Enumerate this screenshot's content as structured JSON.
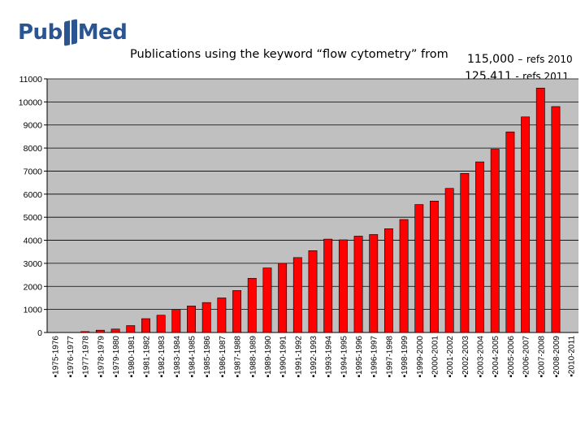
{
  "logo": {
    "left": "Pub",
    "right": "Med"
  },
  "title_line": "Publications using the keyword “flow cytometry” from",
  "refs": [
    {
      "count": "115,000",
      "sep": "–",
      "label": "refs 2010"
    },
    {
      "count": "125,411",
      "sep": "-",
      "label": "refs 2011"
    }
  ],
  "colors": {
    "plot_bg": "#c0c0c0",
    "bar": "#ff0000",
    "bar_edge": "#000000",
    "logo": "#2a5592"
  },
  "chart_data": {
    "type": "bar",
    "title": "",
    "xlabel": "",
    "ylabel": "",
    "ylim": [
      0,
      11000
    ],
    "yticks": [
      0,
      1000,
      2000,
      3000,
      4000,
      5000,
      6000,
      7000,
      8000,
      9000,
      10000,
      11000
    ],
    "grid": true,
    "legend": "none",
    "categories": [
      "1975-1976",
      "1976-1977",
      "1977-1978",
      "1978-1979",
      "1979-1980",
      "1980-1981",
      "1981-1982",
      "1982-1983",
      "1983-1984",
      "1984-1985",
      "1985-1986",
      "1986-1987",
      "1987-1988",
      "1988-1989",
      "1989-1990",
      "1990-1991",
      "1991-1992",
      "1992-1993",
      "1993-1994",
      "1994-1995",
      "1995-1996",
      "1996-1997",
      "1997-1998",
      "1998-1999",
      "1999-2000",
      "2000-2001",
      "2001-2002",
      "2002-2003",
      "2003-2004",
      "2004-2005",
      "2005-2006",
      "2006-2007",
      "2007-2008",
      "2008-2009",
      "2010-2011"
    ],
    "values": [
      0,
      0,
      40,
      100,
      150,
      300,
      600,
      750,
      1000,
      1150,
      1300,
      1500,
      1820,
      2350,
      2800,
      3000,
      3250,
      3550,
      4050,
      4020,
      4180,
      4250,
      4500,
      4900,
      5550,
      5700,
      6250,
      6900,
      7400,
      7950,
      8700,
      9350,
      10600,
      9800,
      0
    ]
  }
}
